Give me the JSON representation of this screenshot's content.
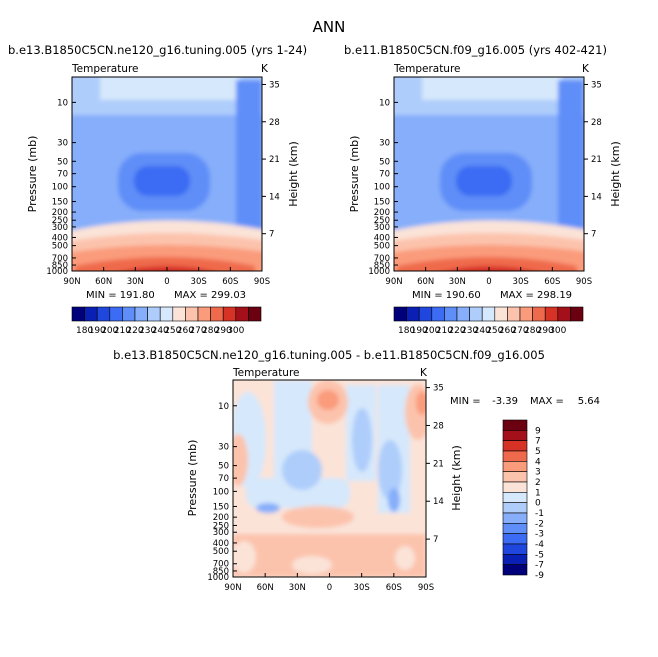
{
  "figure_title": "ANN",
  "chart_data": [
    {
      "type": "heatmap",
      "title": "b.e13.B1850C5CN.ne120_g16.tuning.005 (yrs 1-24)",
      "subtitle": "Temperature",
      "unit": "K",
      "xlabel": "",
      "ylabel": "Pressure (mb)",
      "y2label": "Height (km)",
      "x_ticks": [
        "90N",
        "60N",
        "30N",
        "0",
        "30S",
        "60S",
        "90S"
      ],
      "y_ticks": [
        "10",
        "30",
        "50",
        "70",
        "100",
        "150",
        "200",
        "250",
        "300",
        "400",
        "500",
        "700",
        "850",
        "1000"
      ],
      "y2_ticks": [
        "7",
        "14",
        "21",
        "28",
        "35"
      ],
      "min_label": "MIN = 191.80",
      "max_label": "MAX = 299.03",
      "min": 191.8,
      "max": 299.03,
      "colorbar_labels": [
        "180",
        "190",
        "200",
        "210",
        "220",
        "230",
        "240",
        "250",
        "260",
        "270",
        "280",
        "290",
        "300"
      ]
    },
    {
      "type": "heatmap",
      "title": "b.e11.B1850C5CN.f09_g16.005 (yrs 402-421)",
      "subtitle": "Temperature",
      "unit": "K",
      "xlabel": "",
      "ylabel": "Pressure (mb)",
      "y2label": "Height (km)",
      "x_ticks": [
        "90N",
        "60N",
        "30N",
        "0",
        "30S",
        "60S",
        "90S"
      ],
      "y_ticks": [
        "10",
        "30",
        "50",
        "70",
        "100",
        "150",
        "200",
        "250",
        "300",
        "400",
        "500",
        "700",
        "850",
        "1000"
      ],
      "y2_ticks": [
        "7",
        "14",
        "21",
        "28",
        "35"
      ],
      "min_label": "MIN = 190.60",
      "max_label": "MAX = 298.19",
      "min": 190.6,
      "max": 298.19,
      "colorbar_labels": [
        "180",
        "190",
        "200",
        "210",
        "220",
        "230",
        "240",
        "250",
        "260",
        "270",
        "280",
        "290",
        "300"
      ]
    },
    {
      "type": "heatmap",
      "title": "b.e13.B1850C5CN.ne120_g16.tuning.005 - b.e11.B1850C5CN.f09_g16.005",
      "subtitle": "Temperature",
      "unit": "K",
      "xlabel": "",
      "ylabel": "Pressure (mb)",
      "y2label": "Height (km)",
      "x_ticks": [
        "90N",
        "60N",
        "30N",
        "0",
        "30S",
        "60S",
        "90S"
      ],
      "y_ticks": [
        "10",
        "30",
        "50",
        "70",
        "100",
        "150",
        "200",
        "250",
        "300",
        "400",
        "500",
        "700",
        "850",
        "1000"
      ],
      "y2_ticks": [
        "7",
        "14",
        "21",
        "28",
        "35"
      ],
      "min_label": "MIN = ",
      "min_value": "-3.39",
      "max_label": "MAX = ",
      "max_value": "5.64",
      "min": -3.39,
      "max": 5.64,
      "colorbar_labels": [
        "9",
        "7",
        "5",
        "4",
        "3",
        "2",
        "1",
        "0",
        "-1",
        "-2",
        "-3",
        "-4",
        "-5",
        "-7",
        "-9"
      ]
    }
  ],
  "colors": {
    "abs_scale": [
      "#00007a",
      "#0a1fb4",
      "#1f47de",
      "#3b6cf3",
      "#5f8ef8",
      "#86aefa",
      "#aecdfb",
      "#d6e8fb",
      "#fbe3d8",
      "#fcc3ac",
      "#fa9b7c",
      "#ef6a4c",
      "#d63226",
      "#a3101a",
      "#6b0010"
    ],
    "diff_scale": [
      "#6b0010",
      "#a3101a",
      "#d63226",
      "#ef6a4c",
      "#fa9b7c",
      "#fcc3ac",
      "#fbe3d8",
      "#d6e8fb",
      "#aecdfb",
      "#86aefa",
      "#5f8ef8",
      "#3b6cf3",
      "#1f47de",
      "#0a1fb4",
      "#00007a"
    ]
  }
}
